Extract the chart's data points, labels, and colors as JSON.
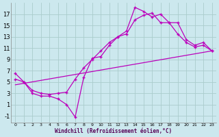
{
  "xlabel": "Windchill (Refroidissement éolien,°C)",
  "bg_color": "#cce8ee",
  "grid_color": "#aacccc",
  "line_color": "#bb00bb",
  "xlim": [
    -0.5,
    23.5
  ],
  "ylim": [
    -2.2,
    19.0
  ],
  "xticks": [
    0,
    1,
    2,
    3,
    4,
    5,
    6,
    7,
    8,
    9,
    10,
    11,
    12,
    13,
    14,
    15,
    16,
    17,
    18,
    19,
    20,
    21,
    22,
    23
  ],
  "yticks": [
    -1,
    1,
    3,
    5,
    7,
    9,
    11,
    13,
    15,
    17
  ],
  "curve1_x": [
    0,
    1,
    2,
    3,
    4,
    5,
    6,
    7,
    8,
    9,
    10,
    11,
    12,
    13,
    14,
    15,
    16,
    17,
    18,
    19,
    20,
    21,
    22,
    23
  ],
  "curve1_y": [
    6.5,
    5.0,
    3.0,
    2.5,
    2.5,
    2.0,
    1.0,
    -1.2,
    5.8,
    9.2,
    9.5,
    11.5,
    13.0,
    14.0,
    18.2,
    17.5,
    16.5,
    17.0,
    15.5,
    15.5,
    12.5,
    11.5,
    12.0,
    10.5
  ],
  "curve2_x": [
    0,
    1,
    2,
    3,
    4,
    5,
    6,
    7,
    8,
    9,
    10,
    11,
    12,
    13,
    14,
    15,
    16,
    17,
    18,
    19,
    20,
    21,
    22,
    23
  ],
  "curve2_y": [
    5.5,
    5.0,
    3.5,
    3.0,
    2.8,
    3.0,
    3.2,
    5.5,
    7.5,
    9.0,
    10.5,
    12.0,
    13.0,
    13.5,
    16.0,
    16.8,
    17.2,
    15.5,
    15.5,
    13.5,
    12.0,
    11.2,
    11.5,
    10.5
  ],
  "line_x": [
    0,
    23
  ],
  "line_y": [
    4.5,
    10.5
  ],
  "marker": "+"
}
